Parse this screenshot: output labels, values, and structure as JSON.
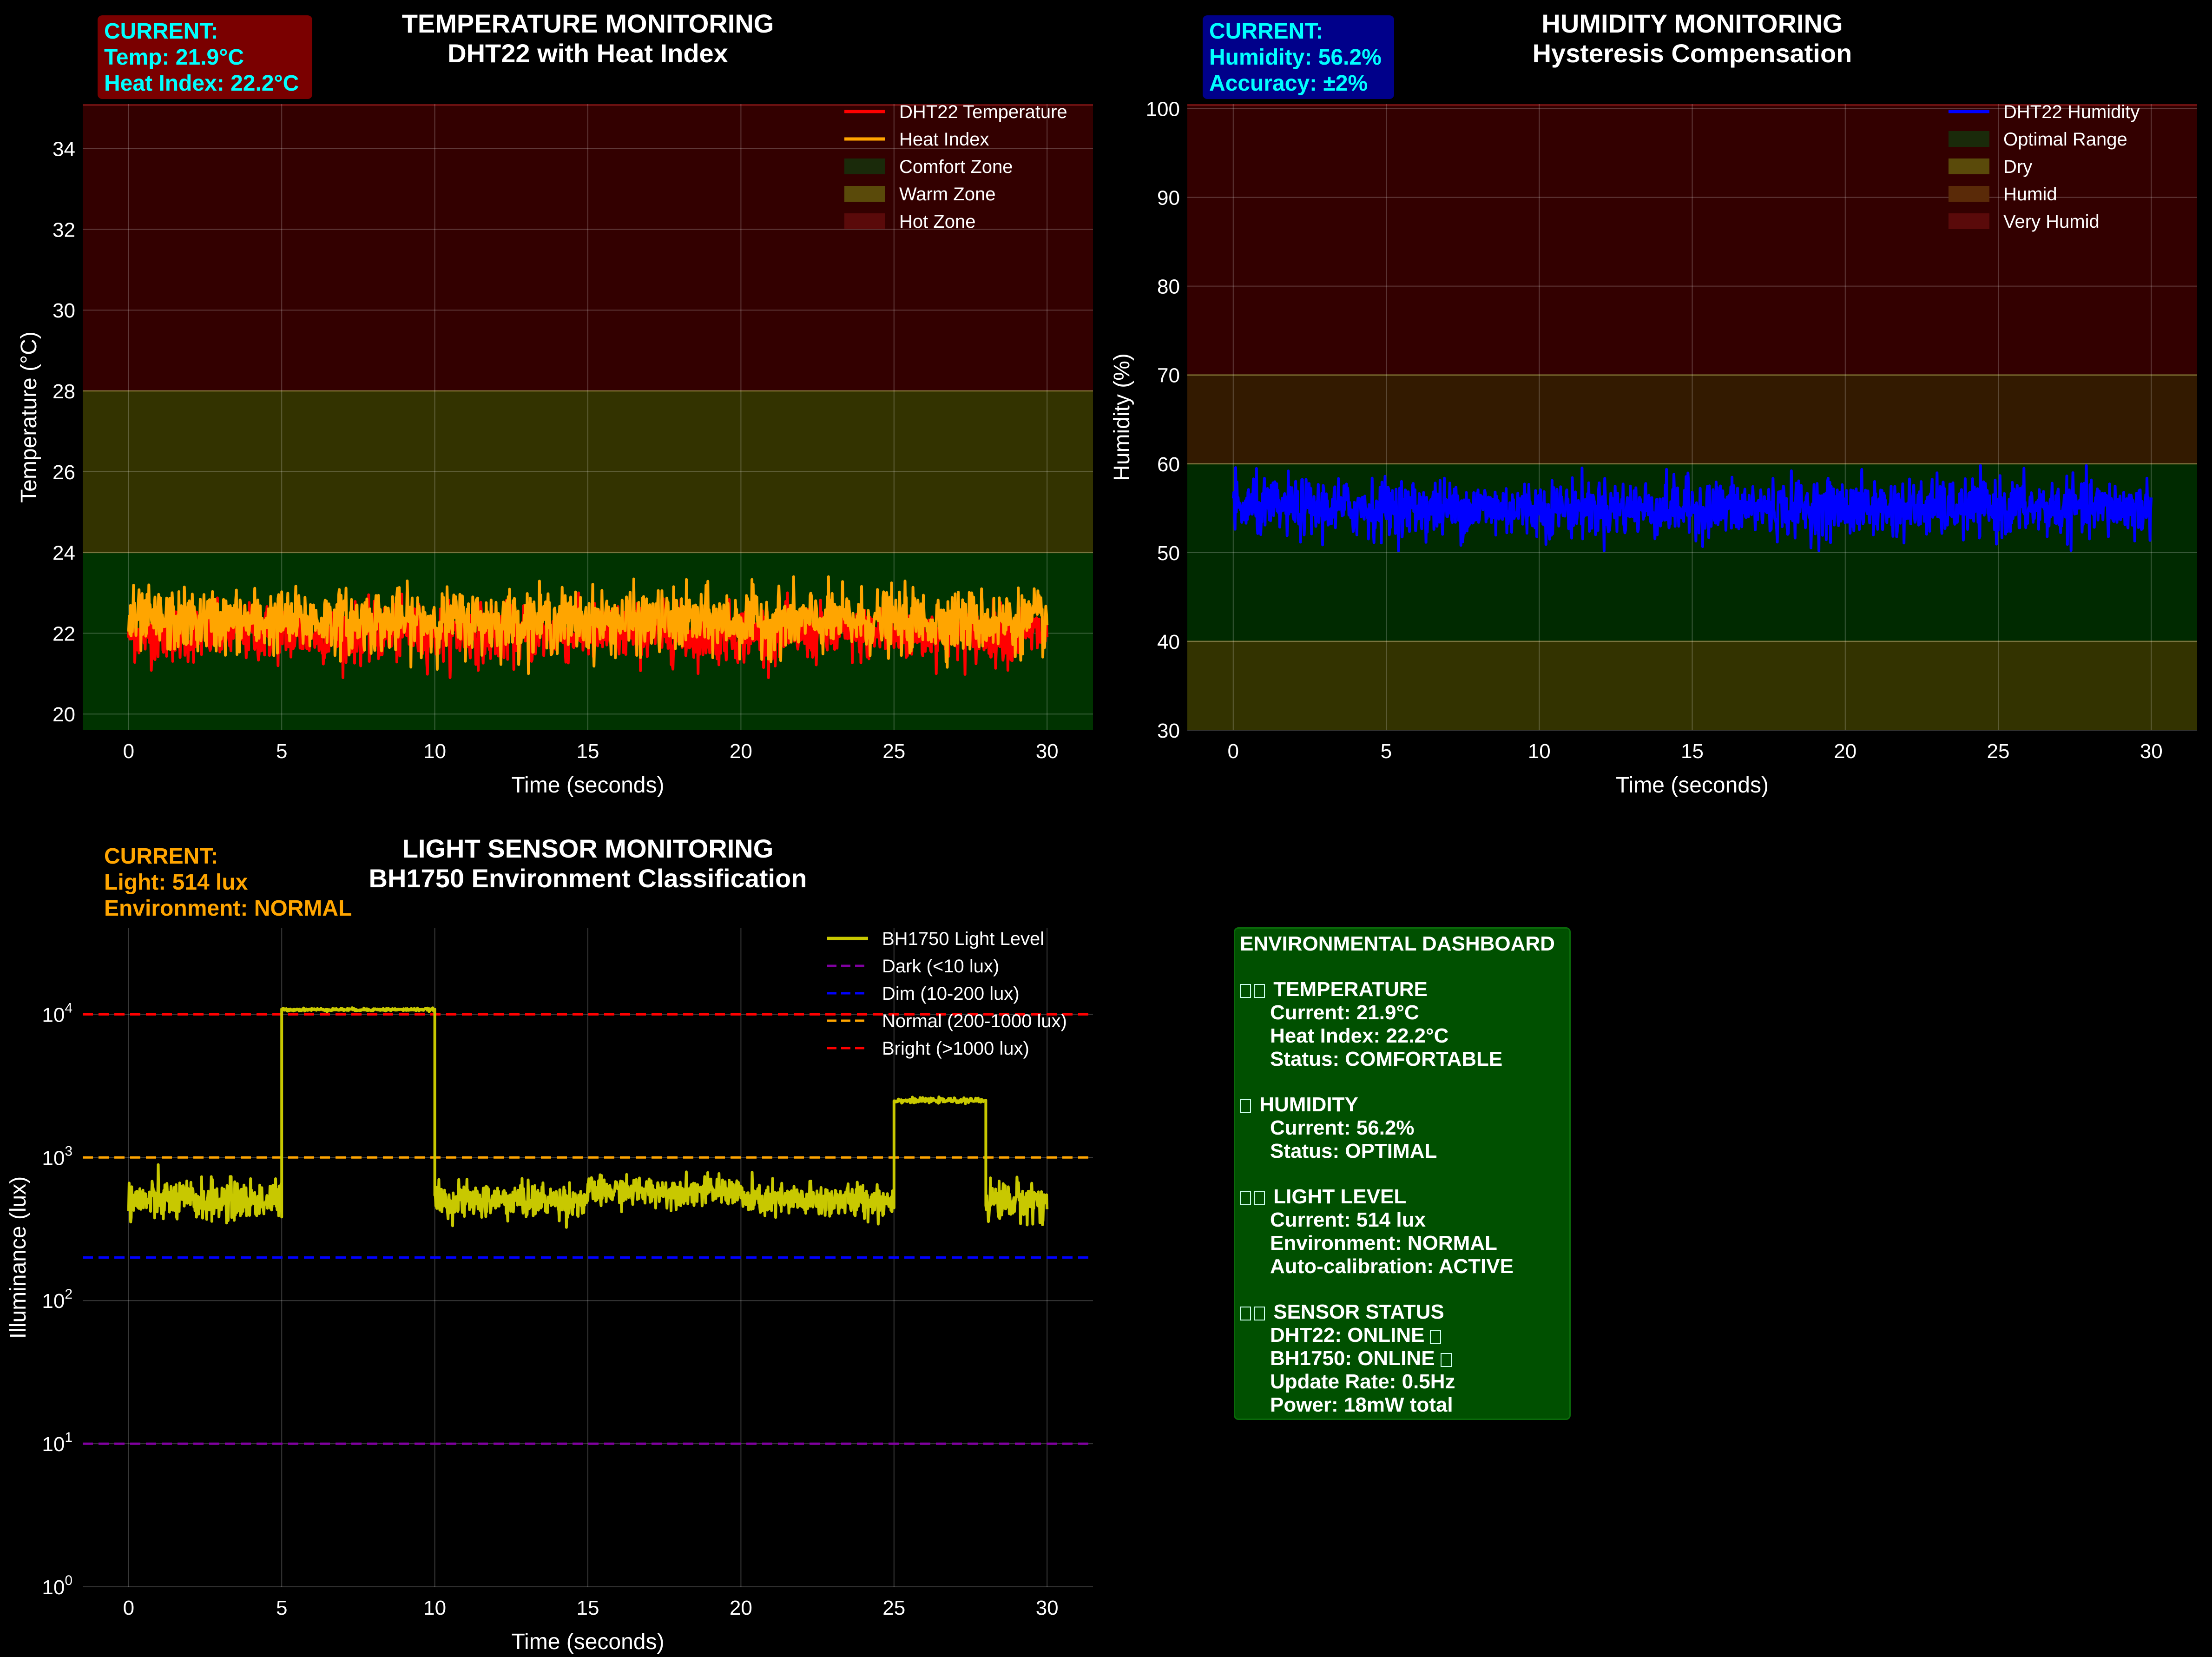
{
  "colors": {
    "background": "#000000",
    "temperature": "#ff0000",
    "heat_index": "#ffa500",
    "humidity": "#0000ff",
    "light": "#c8c800",
    "dark_line": "#8000a0",
    "dim_line": "#0000ff",
    "normal_line": "#ffa500",
    "bright_line": "#ff0000",
    "cyan_text": "#00ffff",
    "orange_text": "#ffa500",
    "dashboard_bg": "#005000"
  },
  "temperature_panel": {
    "title_line1": "TEMPERATURE MONITORING",
    "title_line2": "DHT22 with Heat Index",
    "current_box": [
      "CURRENT:",
      "Temp: 21.9°C",
      "Heat Index: 22.2°C"
    ],
    "current_box_color": "#7a0000"
  },
  "humidity_panel": {
    "title_line1": "HUMIDITY MONITORING",
    "title_line2": "Hysteresis Compensation",
    "current_box": [
      "CURRENT:",
      "Humidity: 56.2%",
      "Accuracy: ±2%"
    ],
    "current_box_color": "#00008a"
  },
  "light_panel": {
    "title_line1": "LIGHT SENSOR MONITORING",
    "title_line2": "BH1750 Environment Classification",
    "current_box": [
      "CURRENT:",
      "Light: 514 lux",
      "Environment: NORMAL"
    ]
  },
  "dashboard": {
    "title": "ENVIRONMENTAL DASHBOARD",
    "sections": [
      {
        "glyphs": 2,
        "heading": "TEMPERATURE",
        "lines": [
          "Current: 21.9°C",
          "Heat Index: 22.2°C",
          "Status: COMFORTABLE"
        ]
      },
      {
        "glyphs": 1,
        "heading": "HUMIDITY",
        "lines": [
          "Current: 56.2%",
          "Status: OPTIMAL"
        ]
      },
      {
        "glyphs": 2,
        "heading": "LIGHT LEVEL",
        "lines": [
          "Current: 514 lux",
          "Environment: NORMAL",
          "Auto-calibration: ACTIVE"
        ]
      },
      {
        "glyphs": 2,
        "heading": "SENSOR STATUS",
        "lines": [
          "DHT22: ONLINE",
          "BH1750: ONLINE",
          "Update Rate: 0.5Hz",
          "Power: 18mW total"
        ],
        "trailing_glyph_lines": [
          0,
          1
        ]
      }
    ]
  },
  "chart_data": [
    {
      "type": "line",
      "id": "temperature",
      "xlabel": "Time (seconds)",
      "ylabel": "Temperature (°C)",
      "xlim": [
        -1.5,
        31.5
      ],
      "ylim": [
        19.6,
        35.1
      ],
      "xticks": [
        0,
        5,
        10,
        15,
        20,
        25,
        30
      ],
      "yticks": [
        20,
        22,
        24,
        26,
        28,
        30,
        32,
        34
      ],
      "grid": true,
      "legend_position": "top-right",
      "bands": [
        {
          "name": "Comfort Zone",
          "from": 19.6,
          "to": 24,
          "color": "#003300"
        },
        {
          "name": "Warm Zone",
          "from": 24,
          "to": 28,
          "color": "#333300"
        },
        {
          "name": "Hot Zone",
          "from": 28,
          "to": 35.1,
          "color": "#330000"
        }
      ],
      "series": [
        {
          "name": "DHT22 Temperature",
          "color": "#ff0000",
          "mean": 22.0,
          "noise": 0.35,
          "x_start": 0,
          "x_end": 30,
          "summary": {
            "min": 20.9,
            "max": 23.0,
            "final": 21.9
          }
        },
        {
          "name": "Heat Index",
          "color": "#ffa500",
          "mean": 22.3,
          "noise": 0.38,
          "x_start": 0,
          "x_end": 30,
          "summary": {
            "min": 21.0,
            "max": 23.4,
            "final": 22.2
          }
        }
      ]
    },
    {
      "type": "line",
      "id": "humidity",
      "xlabel": "Time (seconds)",
      "ylabel": "Humidity (%)",
      "xlim": [
        -1.5,
        31.5
      ],
      "ylim": [
        30,
        100.5
      ],
      "xticks": [
        0,
        5,
        10,
        15,
        20,
        25,
        30
      ],
      "yticks": [
        30,
        40,
        50,
        60,
        70,
        80,
        90,
        100
      ],
      "grid": true,
      "legend_position": "top-right",
      "bands": [
        {
          "name": "Optimal Range",
          "from": 40,
          "to": 60,
          "color": "#002a00"
        },
        {
          "name": "Dry",
          "from": 30,
          "to": 40,
          "color": "#333300"
        },
        {
          "name": "Humid",
          "from": 60,
          "to": 70,
          "color": "#331a00"
        },
        {
          "name": "Very Humid",
          "from": 70,
          "to": 100.5,
          "color": "#330000"
        }
      ],
      "series": [
        {
          "name": "DHT22 Humidity",
          "color": "#0000ff",
          "mean": 55.0,
          "noise": 1.6,
          "x_start": 0,
          "x_end": 30,
          "summary": {
            "min": 50.2,
            "max": 59.8,
            "final": 56.2
          }
        }
      ]
    },
    {
      "type": "line",
      "id": "light",
      "xlabel": "Time (seconds)",
      "ylabel": "Illuminance (lux)",
      "yscale": "log",
      "xlim": [
        -1.5,
        31.5
      ],
      "ylim": [
        1,
        40000
      ],
      "xticks": [
        0,
        5,
        10,
        15,
        20,
        25,
        30
      ],
      "yticks": [
        1,
        10,
        100,
        1000,
        10000
      ],
      "ytick_labels": [
        [
          "10",
          "0"
        ],
        [
          "10",
          "1"
        ],
        [
          "10",
          "2"
        ],
        [
          "10",
          "3"
        ],
        [
          "10",
          "4"
        ]
      ],
      "grid": true,
      "legend_position": "top-right",
      "thresholds": [
        {
          "name": "Dark (<10 lux)",
          "value": 10,
          "color": "#8000a0"
        },
        {
          "name": "Dim (10-200 lux)",
          "value": 200,
          "color": "#0000ff"
        },
        {
          "name": "Normal (200-1000 lux)",
          "value": 1000,
          "color": "#ffa500"
        },
        {
          "name": "Bright (>1000 lux)",
          "value": 10000,
          "color": "#ff0000"
        }
      ],
      "series": [
        {
          "name": "BH1750 Light Level",
          "color": "#c8c800",
          "segments": [
            {
              "x_start": 0,
              "x_end": 5,
              "level": 500,
              "noise": 0.07
            },
            {
              "x_start": 5,
              "x_end": 10,
              "level": 10800,
              "noise": 0.005
            },
            {
              "x_start": 10,
              "x_end": 15,
              "level": 500,
              "noise": 0.06
            },
            {
              "x_start": 15,
              "x_end": 20,
              "level": 580,
              "noise": 0.05
            },
            {
              "x_start": 20,
              "x_end": 25,
              "level": 500,
              "noise": 0.06
            },
            {
              "x_start": 25,
              "x_end": 28,
              "level": 2500,
              "noise": 0.008
            },
            {
              "x_start": 28,
              "x_end": 30,
              "level": 500,
              "noise": 0.07
            }
          ]
        }
      ]
    }
  ]
}
